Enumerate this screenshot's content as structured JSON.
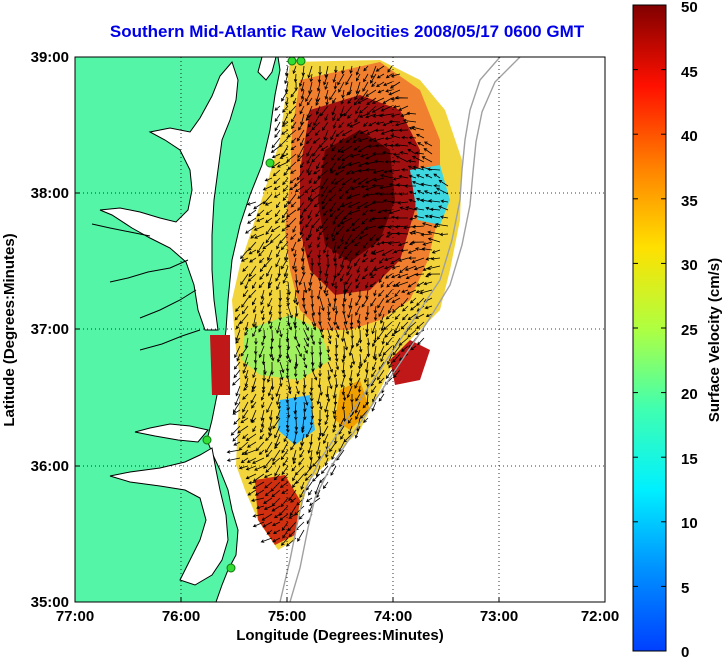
{
  "title": "Southern Mid-Atlantic Raw Velocities 2008/05/17 0600 GMT",
  "map": {
    "xlabel": "Longitude (Degrees:Minutes)",
    "ylabel": "Latitude (Degrees:Minutes)",
    "x_ticks": [
      "77:00",
      "76:00",
      "75:00",
      "74:00",
      "73:00",
      "72:00"
    ],
    "y_ticks": [
      "39:00",
      "38:00",
      "37:00",
      "36:00",
      "35:00"
    ],
    "lon_range": [
      -77,
      -72
    ],
    "lat_range": [
      35,
      39
    ],
    "grid": "dotted",
    "colors": {
      "land": "#55f5a8",
      "coastline": "#000000",
      "isobaths": "#a0a0a0",
      "stations": "#22dd22"
    }
  },
  "colorbar": {
    "label": "Surface Velocity (cm/s)",
    "ticks": [
      "0",
      "5",
      "10",
      "15",
      "20",
      "25",
      "30",
      "35",
      "40",
      "45",
      "50"
    ],
    "range": [
      0,
      50
    ],
    "colormap": "jet"
  }
}
